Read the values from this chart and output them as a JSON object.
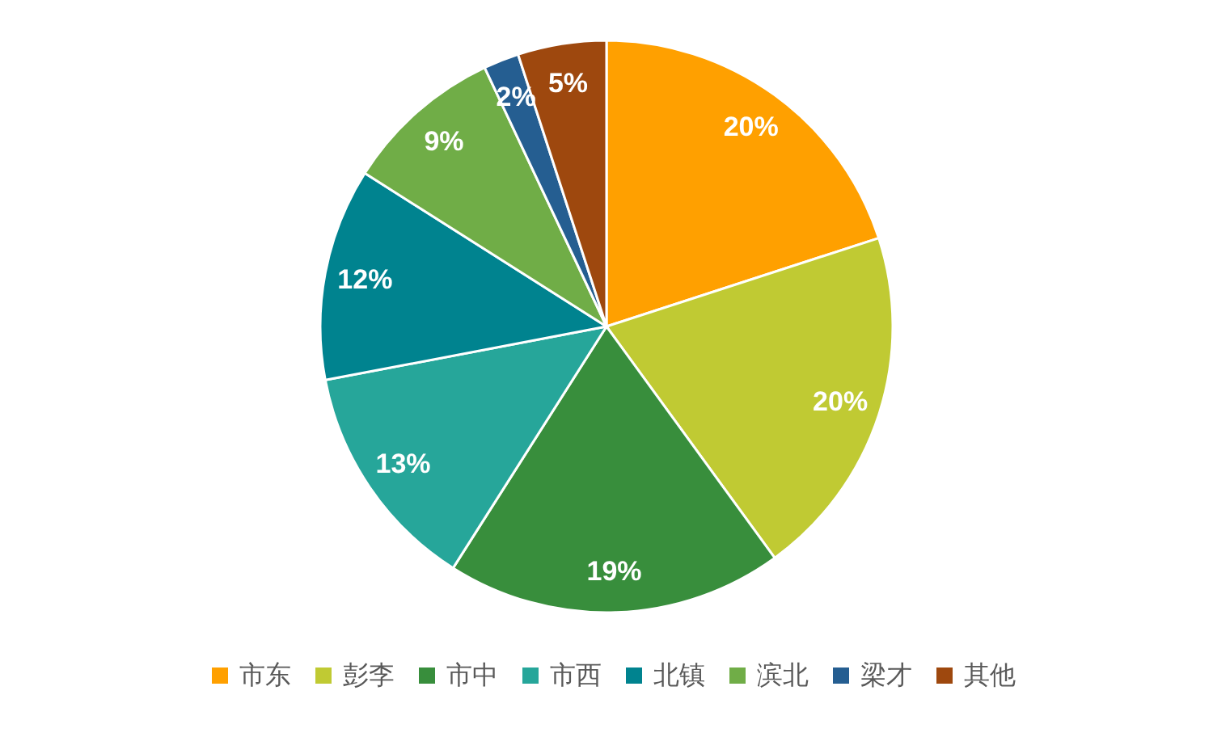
{
  "chart_data": {
    "type": "pie",
    "categories": [
      "市东",
      "彭李",
      "市中",
      "市西",
      "北镇",
      "滨北",
      "梁才",
      "其他"
    ],
    "values": [
      20,
      20,
      19,
      13,
      12,
      9,
      2,
      5
    ],
    "colors": [
      "#ffa000",
      "#c0ca33",
      "#388e3c",
      "#26a69a",
      "#00838f",
      "#70ad47",
      "#255e91",
      "#9e480e"
    ],
    "value_labels": [
      "20%",
      "20%",
      "19%",
      "13%",
      "12%",
      "9%",
      "2%",
      "5%"
    ],
    "legend": "bottom"
  }
}
